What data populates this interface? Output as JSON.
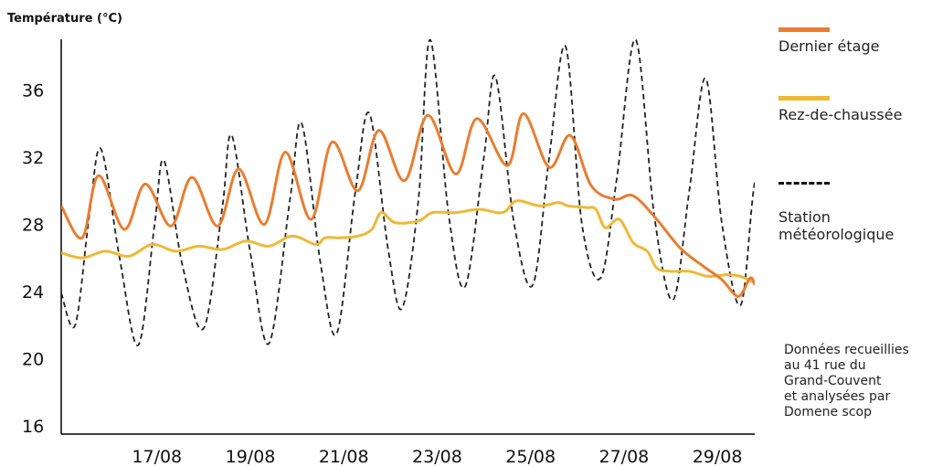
{
  "chart_data": {
    "type": "line",
    "ylabel": "Température (°C)",
    "xlabel": "",
    "ylim": [
      15.5,
      39.3
    ],
    "xlim": [
      14.95,
      29.8
    ],
    "yticks": [
      16,
      20,
      24,
      28,
      32,
      36
    ],
    "xticks": [
      {
        "x": 17,
        "label": "17/08"
      },
      {
        "x": 19,
        "label": "19/08"
      },
      {
        "x": 21,
        "label": "21/08"
      },
      {
        "x": 23,
        "label": "23/08"
      },
      {
        "x": 25,
        "label": "25/08"
      },
      {
        "x": 27,
        "label": "27/08"
      },
      {
        "x": 29,
        "label": "29/08"
      }
    ],
    "grid": false,
    "legend_position": "right",
    "series": [
      {
        "name": "Dernier étage",
        "color": "#e87d31",
        "style": "solid",
        "points": [
          [
            14.95,
            29.1
          ],
          [
            15.4,
            27.2
          ],
          [
            15.75,
            30.9
          ],
          [
            16.3,
            27.7
          ],
          [
            16.75,
            30.4
          ],
          [
            17.3,
            27.9
          ],
          [
            17.75,
            30.8
          ],
          [
            18.3,
            27.9
          ],
          [
            18.75,
            31.3
          ],
          [
            19.3,
            28.0
          ],
          [
            19.75,
            32.3
          ],
          [
            20.3,
            28.3
          ],
          [
            20.75,
            32.9
          ],
          [
            21.3,
            30.0
          ],
          [
            21.75,
            33.6
          ],
          [
            22.3,
            30.6
          ],
          [
            22.8,
            34.5
          ],
          [
            23.4,
            31.0
          ],
          [
            23.85,
            34.3
          ],
          [
            24.5,
            31.5
          ],
          [
            24.85,
            34.6
          ],
          [
            25.4,
            31.4
          ],
          [
            25.85,
            33.3
          ],
          [
            26.3,
            30.3
          ],
          [
            26.8,
            29.5
          ],
          [
            27.2,
            29.7
          ],
          [
            27.7,
            28.3
          ],
          [
            28.2,
            26.6
          ],
          [
            28.7,
            25.5
          ],
          [
            29.1,
            24.7
          ],
          [
            29.45,
            23.7
          ],
          [
            29.7,
            24.8
          ],
          [
            29.8,
            24.4
          ]
        ]
      },
      {
        "name": "Rez-de-chaussée",
        "color": "#eeb938",
        "style": "solid",
        "points": [
          [
            14.95,
            26.3
          ],
          [
            15.4,
            26.0
          ],
          [
            15.9,
            26.4
          ],
          [
            16.4,
            26.1
          ],
          [
            16.9,
            26.8
          ],
          [
            17.4,
            26.4
          ],
          [
            17.9,
            26.7
          ],
          [
            18.4,
            26.5
          ],
          [
            18.9,
            27.0
          ],
          [
            19.4,
            26.7
          ],
          [
            19.9,
            27.3
          ],
          [
            20.4,
            26.8
          ],
          [
            20.6,
            27.2
          ],
          [
            20.9,
            27.2
          ],
          [
            21.3,
            27.3
          ],
          [
            21.6,
            27.7
          ],
          [
            21.8,
            28.7
          ],
          [
            22.1,
            28.1
          ],
          [
            22.6,
            28.2
          ],
          [
            22.9,
            28.7
          ],
          [
            23.4,
            28.7
          ],
          [
            23.9,
            28.9
          ],
          [
            24.4,
            28.7
          ],
          [
            24.7,
            29.4
          ],
          [
            25.2,
            29.1
          ],
          [
            25.6,
            29.3
          ],
          [
            25.8,
            29.1
          ],
          [
            26.2,
            29.0
          ],
          [
            26.4,
            28.9
          ],
          [
            26.6,
            27.8
          ],
          [
            26.9,
            28.3
          ],
          [
            27.2,
            26.9
          ],
          [
            27.5,
            26.4
          ],
          [
            27.7,
            25.4
          ],
          [
            28.0,
            25.2
          ],
          [
            28.4,
            25.2
          ],
          [
            28.8,
            24.9
          ],
          [
            29.2,
            25.0
          ],
          [
            29.5,
            24.9
          ],
          [
            29.8,
            24.5
          ]
        ]
      },
      {
        "name": "Station météorologique",
        "color": "#222222",
        "style": "dashed",
        "points": [
          [
            14.95,
            23.9
          ],
          [
            15.25,
            22.0
          ],
          [
            15.55,
            28.5
          ],
          [
            15.8,
            32.5
          ],
          [
            16.2,
            26.0
          ],
          [
            16.6,
            20.8
          ],
          [
            16.95,
            28.0
          ],
          [
            17.15,
            31.8
          ],
          [
            17.55,
            25.5
          ],
          [
            18.0,
            21.8
          ],
          [
            18.4,
            29.0
          ],
          [
            18.6,
            33.3
          ],
          [
            19.0,
            26.3
          ],
          [
            19.4,
            20.9
          ],
          [
            19.85,
            29.5
          ],
          [
            20.1,
            34.0
          ],
          [
            20.5,
            25.7
          ],
          [
            20.85,
            21.5
          ],
          [
            21.25,
            30.0
          ],
          [
            21.55,
            34.6
          ],
          [
            21.95,
            26.5
          ],
          [
            22.25,
            23.0
          ],
          [
            22.6,
            29.5
          ],
          [
            22.85,
            39.0
          ],
          [
            23.25,
            28.5
          ],
          [
            23.6,
            24.3
          ],
          [
            24.0,
            32.0
          ],
          [
            24.25,
            36.8
          ],
          [
            24.65,
            28.0
          ],
          [
            25.05,
            24.4
          ],
          [
            25.4,
            32.0
          ],
          [
            25.75,
            38.6
          ],
          [
            26.1,
            28.0
          ],
          [
            26.5,
            24.8
          ],
          [
            26.85,
            30.8
          ],
          [
            27.25,
            39.0
          ],
          [
            27.65,
            28.5
          ],
          [
            28.05,
            23.5
          ],
          [
            28.4,
            30.0
          ],
          [
            28.75,
            36.7
          ],
          [
            29.1,
            28.0
          ],
          [
            29.5,
            23.2
          ],
          [
            29.8,
            30.5
          ],
          [
            30.1,
            32.0
          ]
        ]
      }
    ]
  },
  "legend": {
    "items": [
      {
        "label": "Dernier étage",
        "color": "#e87d31",
        "style": "solid"
      },
      {
        "label": "Rez-de-chaussée",
        "color": "#eeb938",
        "style": "solid"
      },
      {
        "label": "Station\nmétéorologique",
        "color": "#222222",
        "style": "dashed"
      }
    ]
  },
  "note": "Données recueillies\nau 41 rue du\nGrand-Couvent\net analysées par\nDomene scop"
}
